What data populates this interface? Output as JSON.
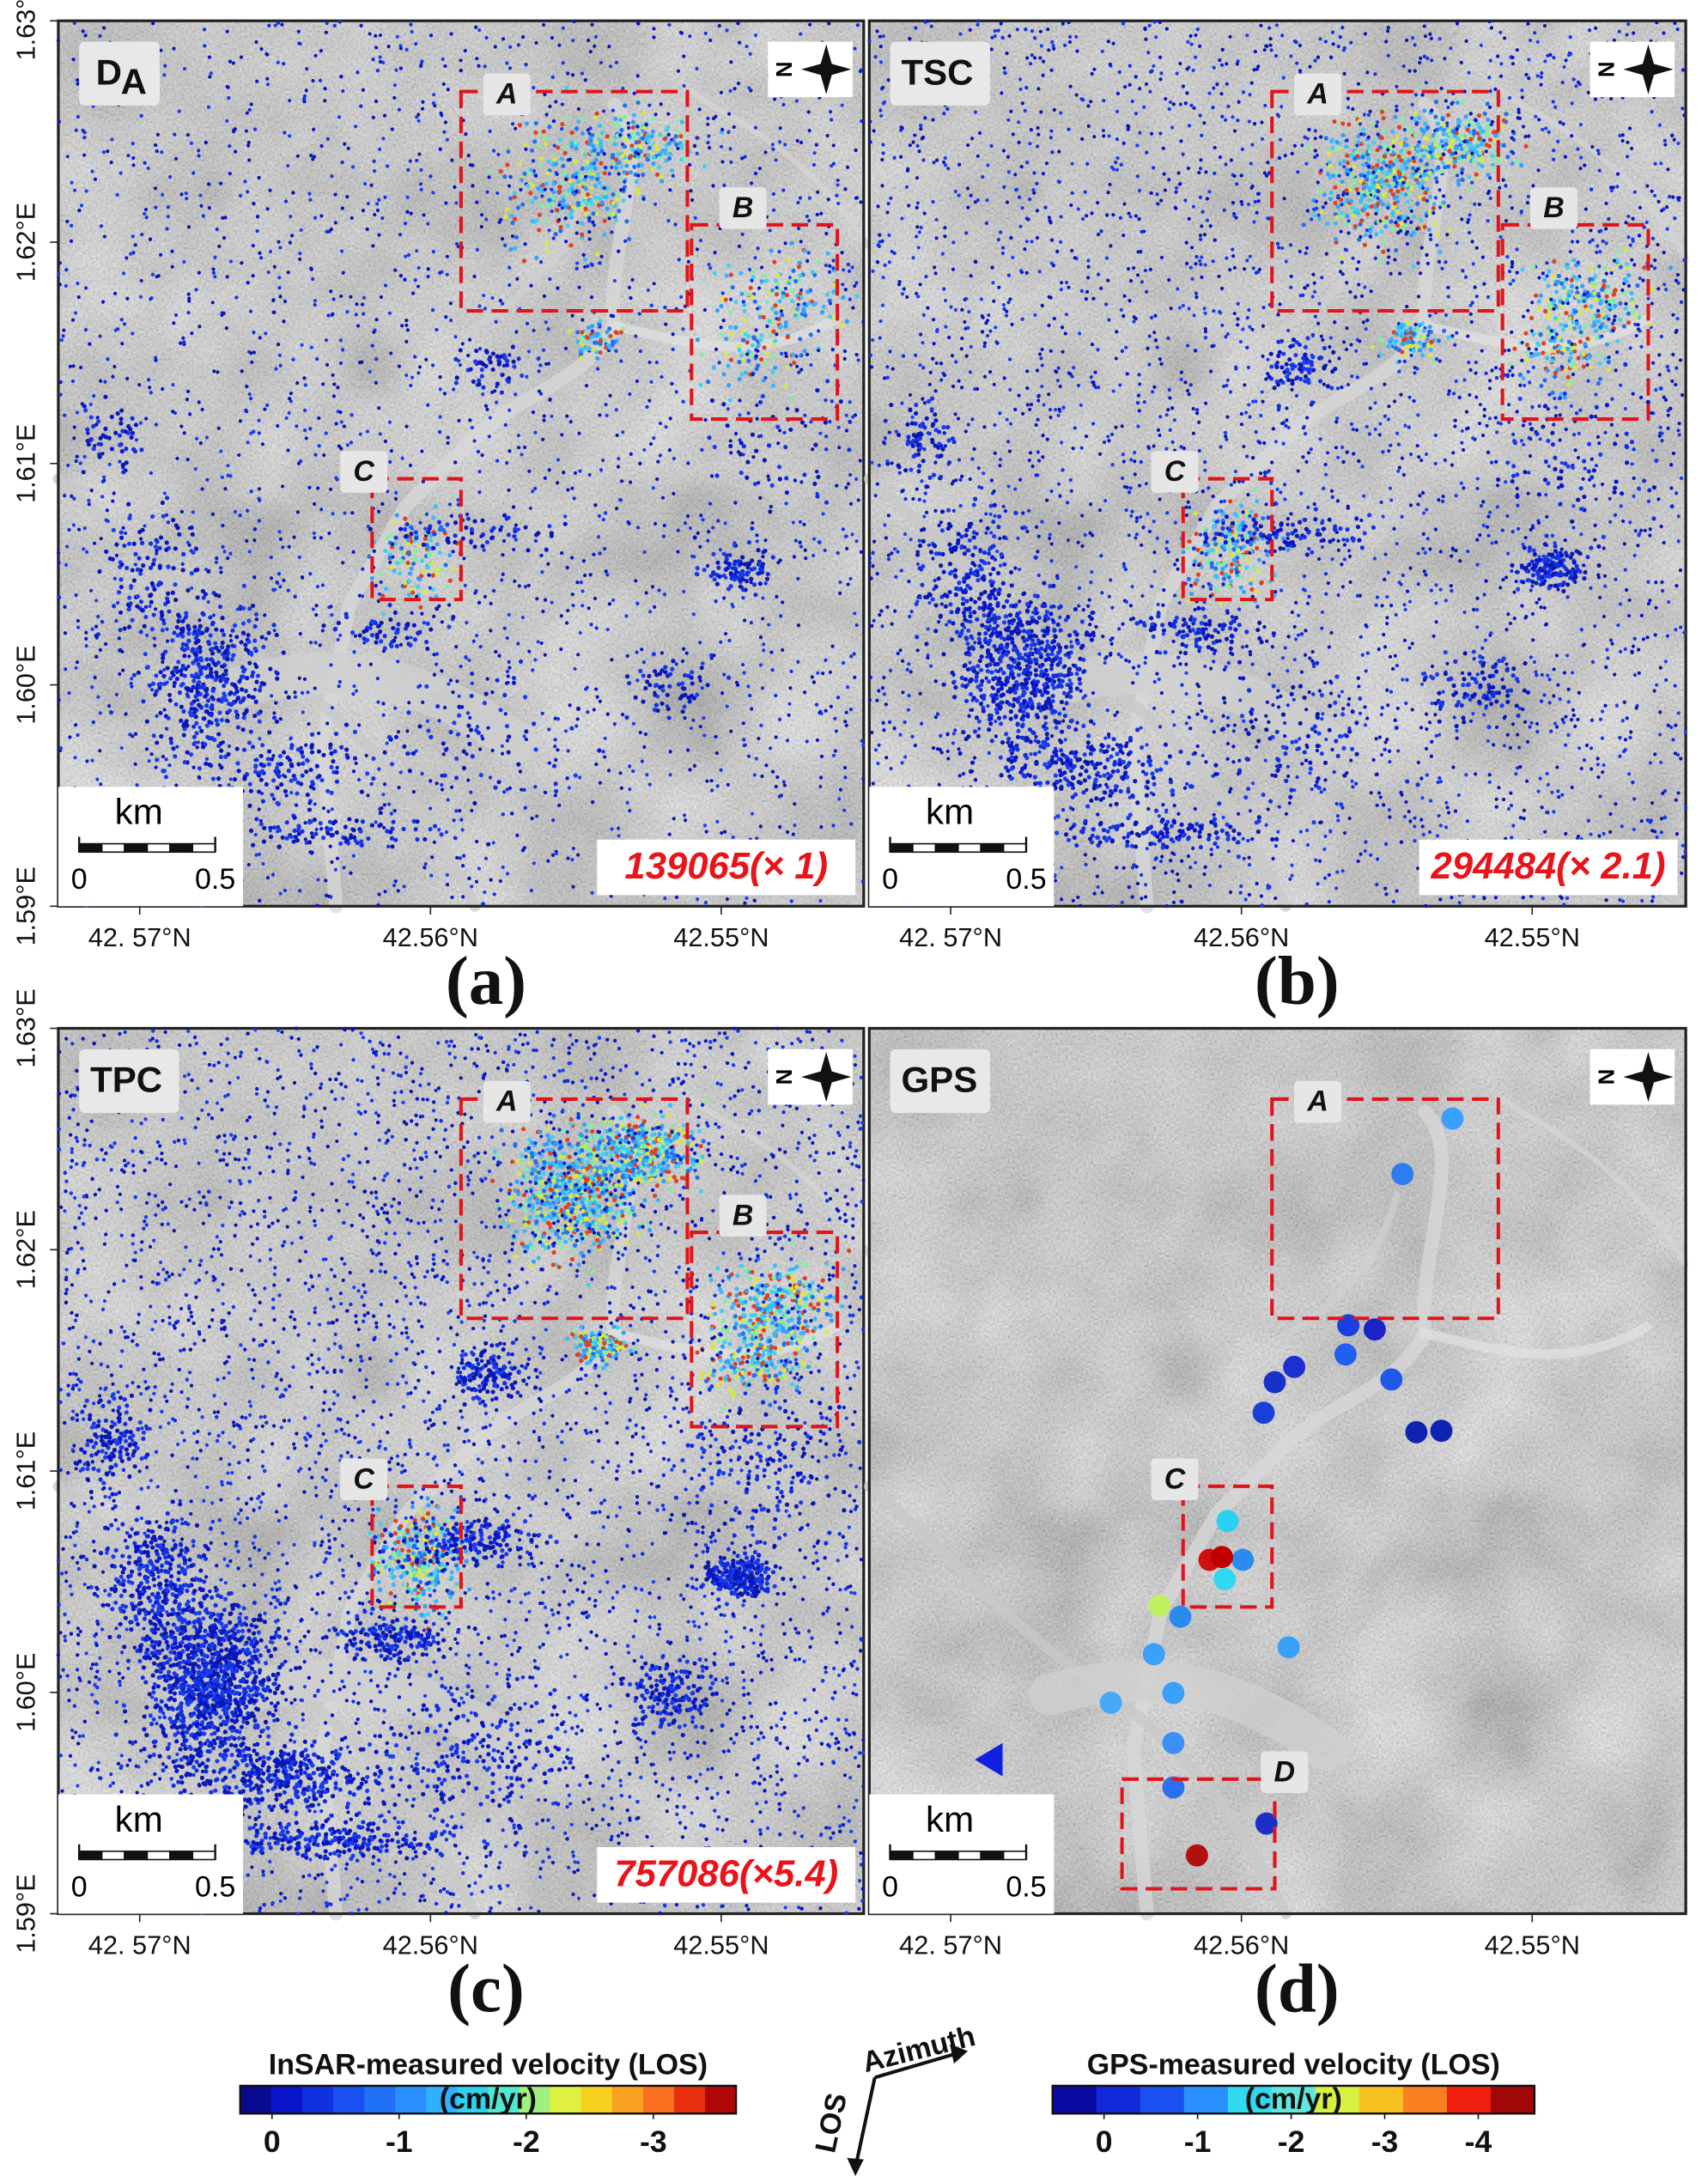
{
  "panels": [
    {
      "letter": "(a)",
      "tag": "D",
      "tag_sub": "A",
      "count": "139065(× 1)",
      "boxes": [
        "A",
        "B",
        "C"
      ]
    },
    {
      "letter": "(b)",
      "tag": "TSC",
      "count": "294484(× 2.1)",
      "boxes": [
        "A",
        "B",
        "C"
      ]
    },
    {
      "letter": "(c)",
      "tag": "TPC",
      "count": "757086(×5.4)",
      "boxes": [
        "A",
        "B",
        "C"
      ]
    },
    {
      "letter": "(d)",
      "tag": "GPS",
      "boxes": [
        "A",
        "C",
        "D"
      ]
    }
  ],
  "map_axes": {
    "lat_lim": [
      1.59,
      1.63
    ],
    "lat_ticks": [
      {
        "value": 1.63,
        "label": "1.63°E"
      },
      {
        "value": 1.62,
        "label": "1.62°E"
      },
      {
        "value": 1.61,
        "label": "1.61°E"
      },
      {
        "value": 1.6,
        "label": "1.60°E"
      },
      {
        "value": 1.59,
        "label": "1.59°E"
      }
    ],
    "lon_lim": [
      42.5728,
      42.5451
    ],
    "lon_ticks": [
      {
        "value": 42.57,
        "label": "42. 57°N"
      },
      {
        "value": 42.56,
        "label": "42.56°N"
      },
      {
        "value": 42.55,
        "label": "42.55°N"
      }
    ]
  },
  "scale_bar": {
    "unit": "km",
    "ticks": [
      0,
      0.5
    ]
  },
  "colorbars": [
    {
      "title": "InSAR-measured velocity (LOS)",
      "unit": "(cm/yr)",
      "lim": [
        0.25,
        -3.65
      ],
      "ticks": [
        0,
        -1,
        -2,
        -3
      ]
    },
    {
      "title": "GPS-measured velocity (LOS)",
      "unit": "(cm/yr)",
      "lim": [
        0.55,
        -4.6
      ],
      "ticks": [
        0,
        -1,
        -2,
        -3,
        -4
      ]
    }
  ],
  "direction": {
    "azimuth": "Azimuth",
    "los": "LOS"
  }
}
